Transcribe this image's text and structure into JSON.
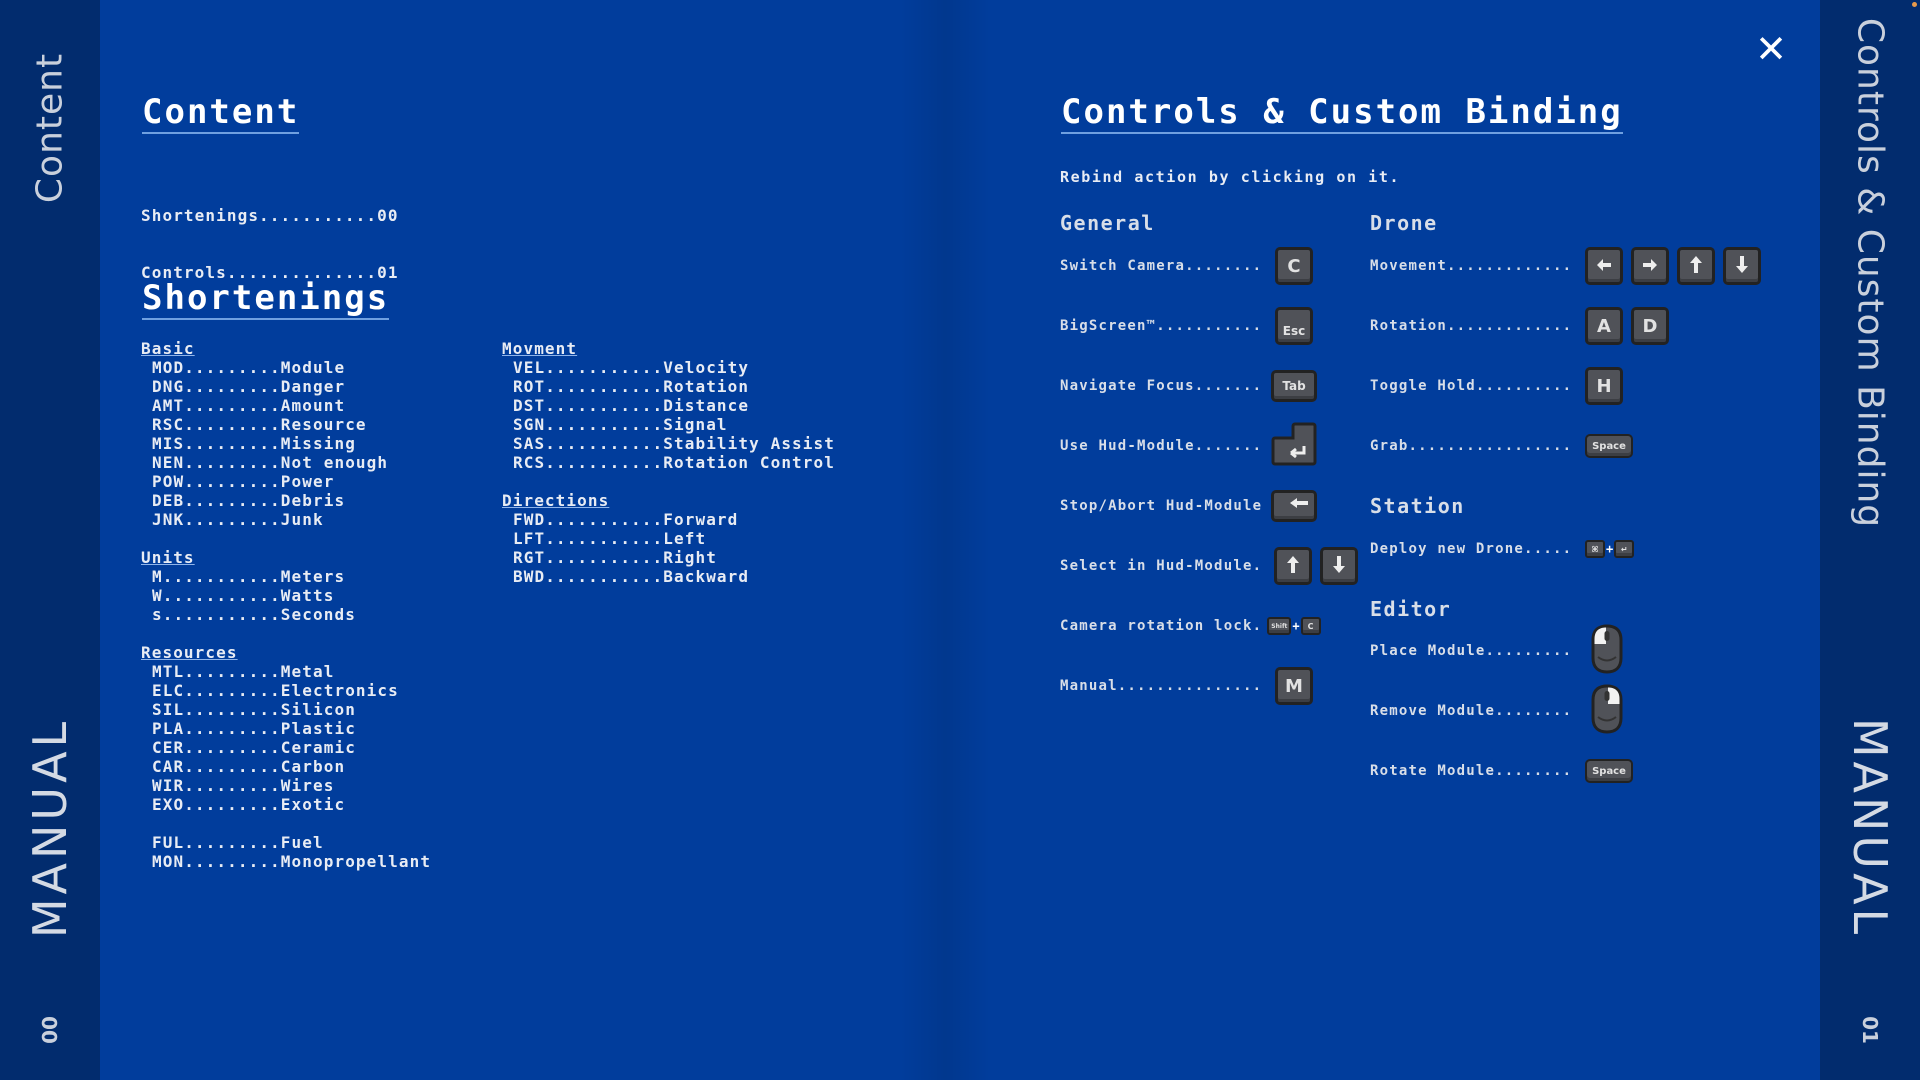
{
  "colors": {
    "background": "#013d9c",
    "sidebar": "#022c6e",
    "text": "#e8ecf4",
    "underline": "#6fa0e0",
    "key": "#505258"
  },
  "left_sidebar": {
    "title": "Content",
    "manual": "MANUAL",
    "page": "00"
  },
  "right_sidebar": {
    "title": "Controls & Custom Binding",
    "manual": "MANUAL",
    "page": "01"
  },
  "close_icon": "close-icon",
  "content": {
    "title": "Content",
    "toc": [
      "Shortenings...........00",
      "Controls..............01"
    ]
  },
  "shortenings": {
    "title": "Shortenings",
    "columns": [
      {
        "groups": [
          {
            "title": "Basic",
            "items": [
              "MOD.........Module",
              "DNG.........Danger",
              "AMT.........Amount",
              "RSC.........Resource",
              "MIS.........Missing",
              "NEN.........Not enough",
              "POW.........Power",
              "DEB.........Debris",
              "JNK.........Junk"
            ]
          },
          {
            "title": "Units",
            "items": [
              "M...........Meters",
              "W...........Watts",
              "s...........Seconds"
            ]
          },
          {
            "title": "Resources",
            "items": [
              "MTL.........Metal",
              "ELC.........Electronics",
              "SIL.........Silicon",
              "PLA.........Plastic",
              "CER.........Ceramic",
              "CAR.........Carbon",
              "WIR.........Wires",
              "EXO.........Exotic"
            ]
          },
          {
            "title": "",
            "items": [
              "FUL.........Fuel",
              "MON.........Monopropellant"
            ]
          }
        ]
      },
      {
        "groups": [
          {
            "title": "Movment",
            "items": [
              "VEL...........Velocity",
              "ROT...........Rotation",
              "DST...........Distance",
              "SGN...........Signal",
              "SAS...........Stability Assist",
              "RCS...........Rotation Control"
            ]
          },
          {
            "title": "Directions",
            "items": [
              "FWD...........Forward",
              "LFT...........Left",
              "RGT...........Right",
              "BWD...........Backward"
            ]
          }
        ]
      }
    ]
  },
  "controls": {
    "title": "Controls & Custom Binding",
    "subtitle": "Rebind action by clicking on it.",
    "general": {
      "title": "General",
      "rows": [
        {
          "label": "Switch Camera........",
          "keys": [
            "C"
          ]
        },
        {
          "label": "BigScreen™...........",
          "keys": [
            "Esc"
          ]
        },
        {
          "label": "Navigate Focus.......",
          "keys": [
            "Tab"
          ]
        },
        {
          "label": "Use Hud-Module.......",
          "keys": [
            "enter"
          ]
        },
        {
          "label": "Stop/Abort Hud-Module",
          "keys": [
            "backspace"
          ]
        },
        {
          "label": "Select in Hud-Module.",
          "keys": [
            "arrow-up",
            "arrow-down"
          ]
        },
        {
          "label": "Camera rotation lock.",
          "keys": [
            "combo:Shift+C"
          ]
        },
        {
          "label": "Manual...............",
          "keys": [
            "M"
          ]
        }
      ]
    },
    "drone": {
      "title": "Drone",
      "rows": [
        {
          "label": "Movement.............",
          "keys": [
            "arrow-left",
            "arrow-right",
            "arrow-up",
            "arrow-down"
          ]
        },
        {
          "label": "Rotation.............",
          "keys": [
            "A",
            "D"
          ]
        },
        {
          "label": "Toggle Hold..........",
          "keys": [
            "H"
          ]
        },
        {
          "label": "Grab.................",
          "keys": [
            "Space"
          ]
        }
      ]
    },
    "station": {
      "title": "Station",
      "rows": [
        {
          "label": "Deploy new Drone.....",
          "keys": [
            "combo:cmd+enter"
          ]
        }
      ]
    },
    "editor": {
      "title": "Editor",
      "rows": [
        {
          "label": "Place Module.........",
          "keys": [
            "mouse-left"
          ]
        },
        {
          "label": "Remove Module........",
          "keys": [
            "mouse-right"
          ]
        },
        {
          "label": "Rotate Module........",
          "keys": [
            "Space"
          ]
        }
      ]
    }
  }
}
